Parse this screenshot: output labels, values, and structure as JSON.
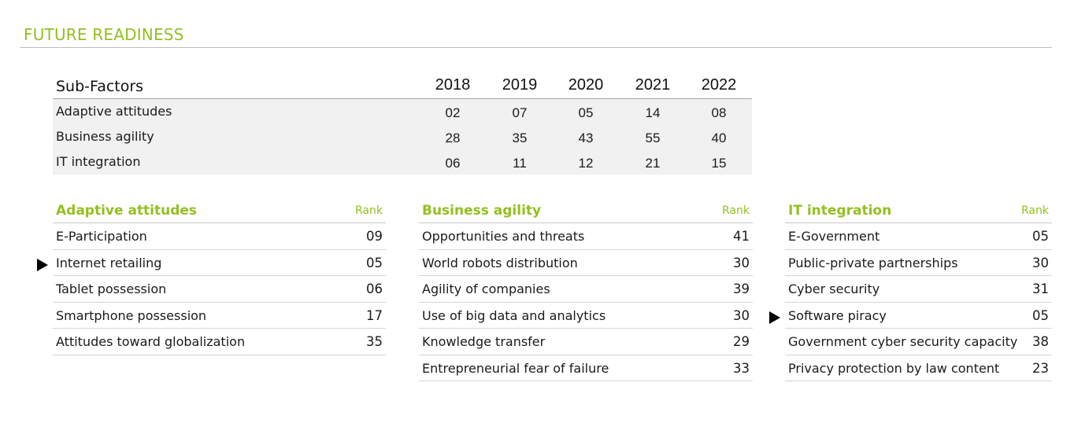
{
  "page": {
    "title": "FUTURE READINESS"
  },
  "colors": {
    "accent": "#93c01f",
    "table_bg": "#f1f1f1",
    "rule": "#bdbdbd"
  },
  "subfactors": {
    "header": "Sub-Factors",
    "years": [
      "2018",
      "2019",
      "2020",
      "2021",
      "2022"
    ],
    "rows": [
      {
        "label": "Adaptive attitudes",
        "values": [
          "02",
          "07",
          "05",
          "14",
          "08"
        ]
      },
      {
        "label": "Business agility",
        "values": [
          "28",
          "35",
          "43",
          "55",
          "40"
        ]
      },
      {
        "label": "IT integration",
        "values": [
          "06",
          "11",
          "12",
          "21",
          "15"
        ]
      }
    ]
  },
  "panels": [
    {
      "title": "Adaptive attitudes",
      "rank_label": "Rank",
      "rows": [
        {
          "label": "E-Participation",
          "rank": "09",
          "marker": false
        },
        {
          "label": "Internet retailing",
          "rank": "05",
          "marker": true
        },
        {
          "label": "Tablet possession",
          "rank": "06",
          "marker": false
        },
        {
          "label": "Smartphone possession",
          "rank": "17",
          "marker": false
        },
        {
          "label": "Attitudes toward globalization",
          "rank": "35",
          "marker": false
        }
      ]
    },
    {
      "title": "Business agility",
      "rank_label": "Rank",
      "rows": [
        {
          "label": "Opportunities and threats",
          "rank": "41",
          "marker": false
        },
        {
          "label": "World robots distribution",
          "rank": "30",
          "marker": false
        },
        {
          "label": "Agility of companies",
          "rank": "39",
          "marker": false
        },
        {
          "label": "Use of big data and analytics",
          "rank": "30",
          "marker": false
        },
        {
          "label": "Knowledge transfer",
          "rank": "29",
          "marker": false
        },
        {
          "label": "Entrepreneurial fear of failure",
          "rank": "33",
          "marker": false
        }
      ]
    },
    {
      "title": "IT integration",
      "rank_label": "Rank",
      "rows": [
        {
          "label": "E-Government",
          "rank": "05",
          "marker": false
        },
        {
          "label": "Public-private partnerships",
          "rank": "30",
          "marker": false
        },
        {
          "label": "Cyber security",
          "rank": "31",
          "marker": false
        },
        {
          "label": "Software piracy",
          "rank": "05",
          "marker": true
        },
        {
          "label": "Government cyber security capacity",
          "rank": "38",
          "marker": false
        },
        {
          "label": "Privacy protection by law content",
          "rank": "23",
          "marker": false
        }
      ]
    }
  ]
}
